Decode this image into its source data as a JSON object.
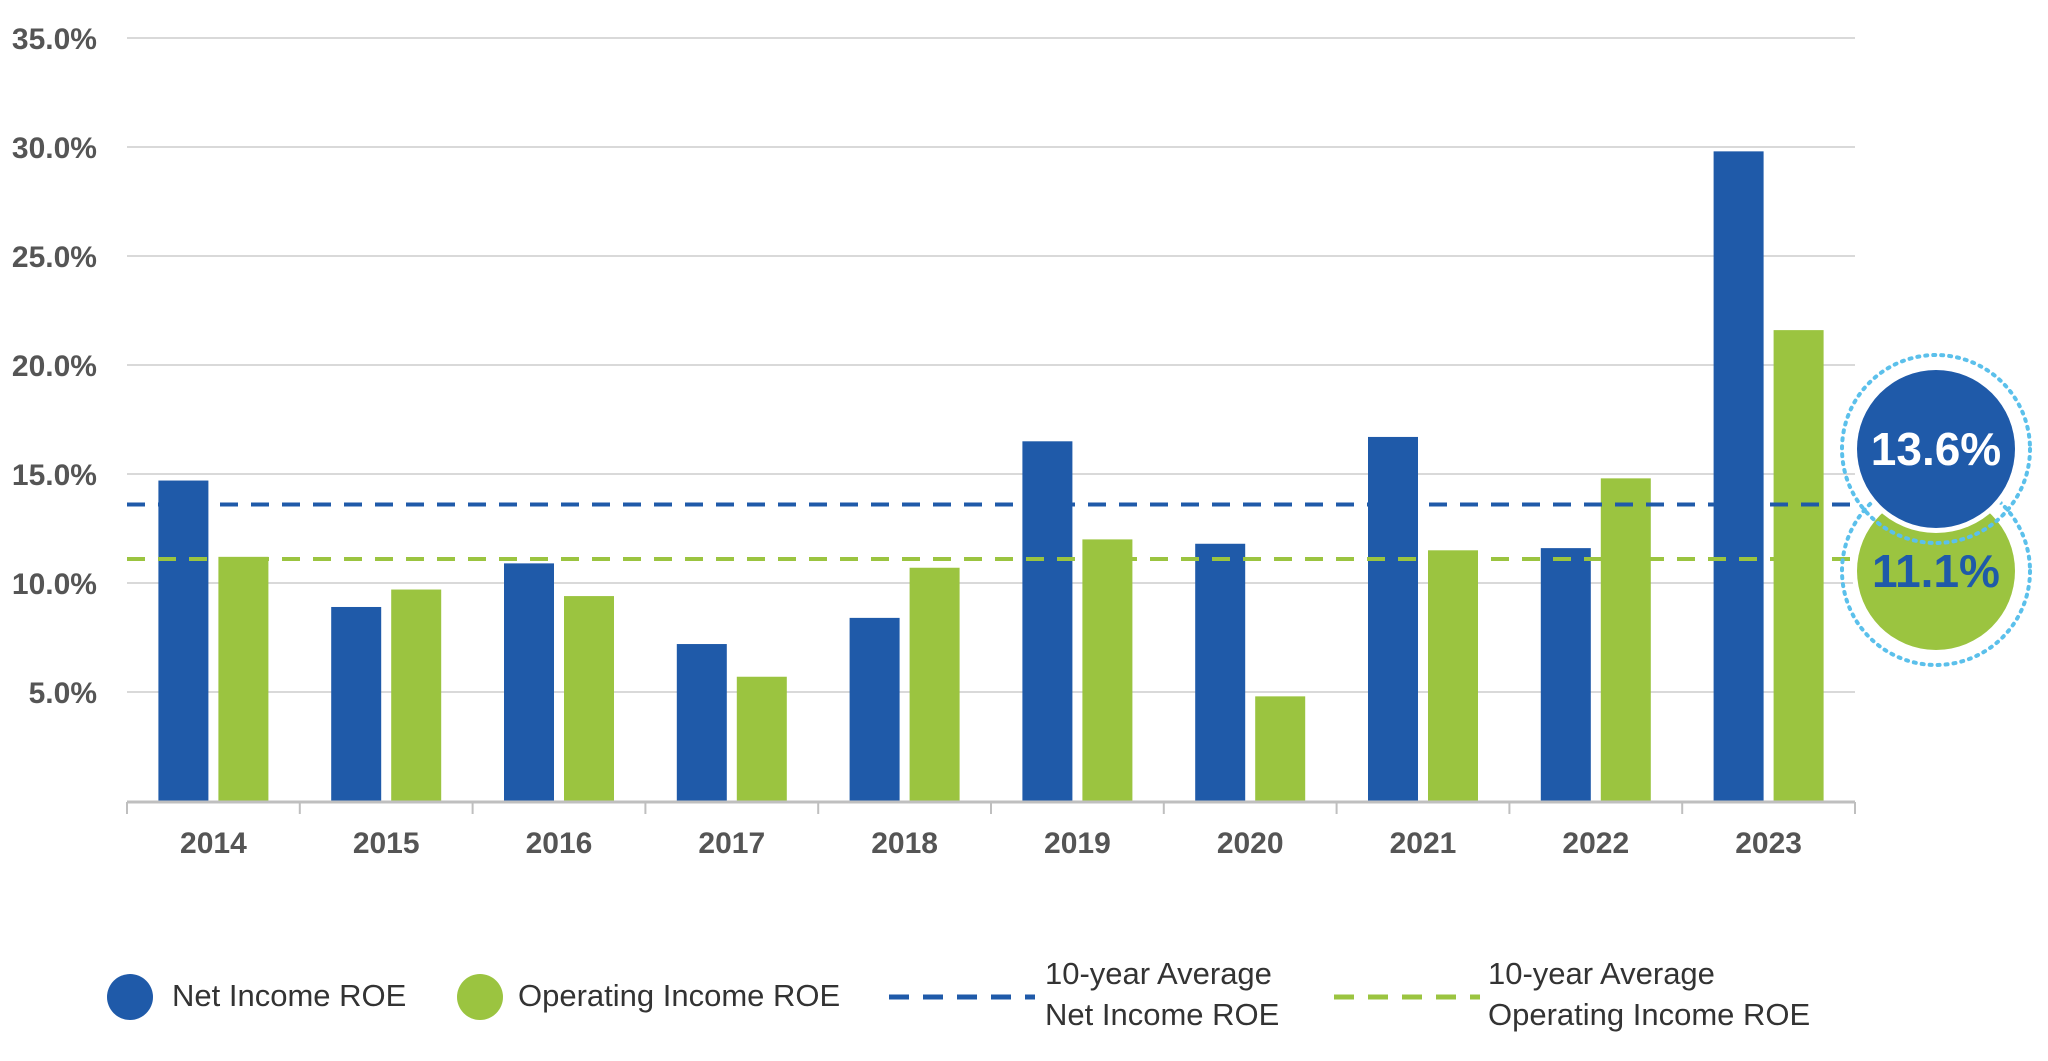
{
  "chart_data": {
    "type": "bar",
    "categories": [
      "2014",
      "2015",
      "2016",
      "2017",
      "2018",
      "2019",
      "2020",
      "2021",
      "2022",
      "2023"
    ],
    "series": [
      {
        "name": "Net Income ROE",
        "color": "#1f5aa9",
        "values": [
          14.7,
          8.9,
          10.9,
          7.2,
          8.4,
          16.5,
          11.8,
          16.7,
          11.6,
          29.8
        ]
      },
      {
        "name": "Operating Income ROE",
        "color": "#9bc440",
        "values": [
          11.2,
          9.7,
          9.4,
          5.7,
          10.7,
          12.0,
          4.8,
          11.5,
          14.8,
          21.6
        ]
      }
    ],
    "averages": [
      {
        "name": "10-year Average Net Income ROE",
        "line1": "10-year Average",
        "line2": "Net Income ROE",
        "value": 13.6,
        "label": "13.6%",
        "color": "#1f5aa9"
      },
      {
        "name": "10-year Average Operating Income ROE",
        "line1": "10-year Average",
        "line2": "Operating Income ROE",
        "value": 11.1,
        "label": "11.1%",
        "color": "#9bc440"
      }
    ],
    "yticks": [
      5,
      10,
      15,
      20,
      25,
      30,
      35
    ],
    "ytick_labels": [
      "5.0%",
      "10.0%",
      "15.0%",
      "20.0%",
      "25.0%",
      "30.0%",
      "35.0%"
    ],
    "ylim": [
      0,
      35
    ],
    "title": "",
    "xlabel": "",
    "ylabel": "",
    "grid": true,
    "legend_position": "bottom"
  },
  "colors": {
    "grid": "#d9d9d9",
    "axis": "#bfbfbf",
    "badge_ring": "#5bc0eb",
    "badge_text_on_blue": "#ffffff",
    "badge_text_on_green": "#1f5aa9"
  }
}
